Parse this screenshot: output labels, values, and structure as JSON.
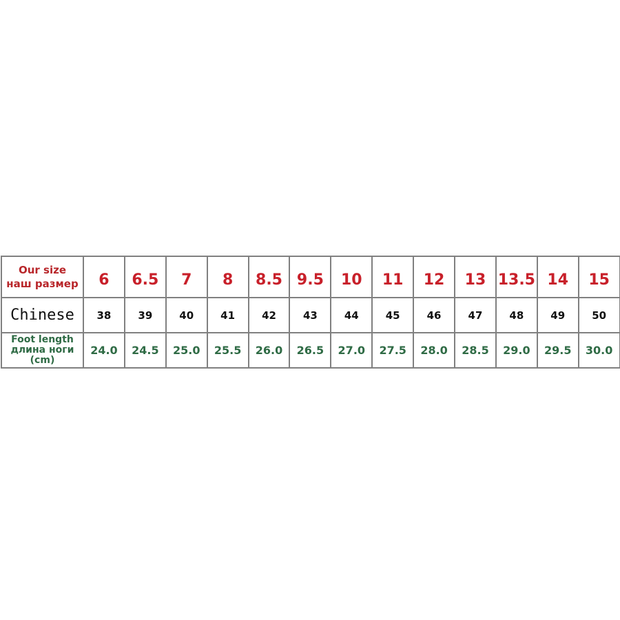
{
  "table": {
    "row_labels": {
      "our_size": [
        "Our size",
        "наш размер"
      ],
      "chinese": "Chinese",
      "foot_length": [
        "Foot length",
        "длина ноги",
        "(cm)"
      ]
    },
    "our_size": [
      "6",
      "6.5",
      "7",
      "8",
      "8.5",
      "9.5",
      "10",
      "11",
      "12",
      "13",
      "13.5",
      "14",
      "15"
    ],
    "chinese": [
      "38",
      "39",
      "40",
      "41",
      "42",
      "43",
      "44",
      "45",
      "46",
      "47",
      "48",
      "49",
      "50"
    ],
    "foot_length_cm": [
      "24.0",
      "24.5",
      "25.0",
      "25.5",
      "26.0",
      "26.5",
      "27.0",
      "27.5",
      "28.0",
      "28.5",
      "29.0",
      "29.5",
      "30.0"
    ]
  },
  "colors": {
    "our_size": "#c8202a",
    "chinese": "#111111",
    "foot_length": "#2f6b45",
    "border": "#808080"
  }
}
